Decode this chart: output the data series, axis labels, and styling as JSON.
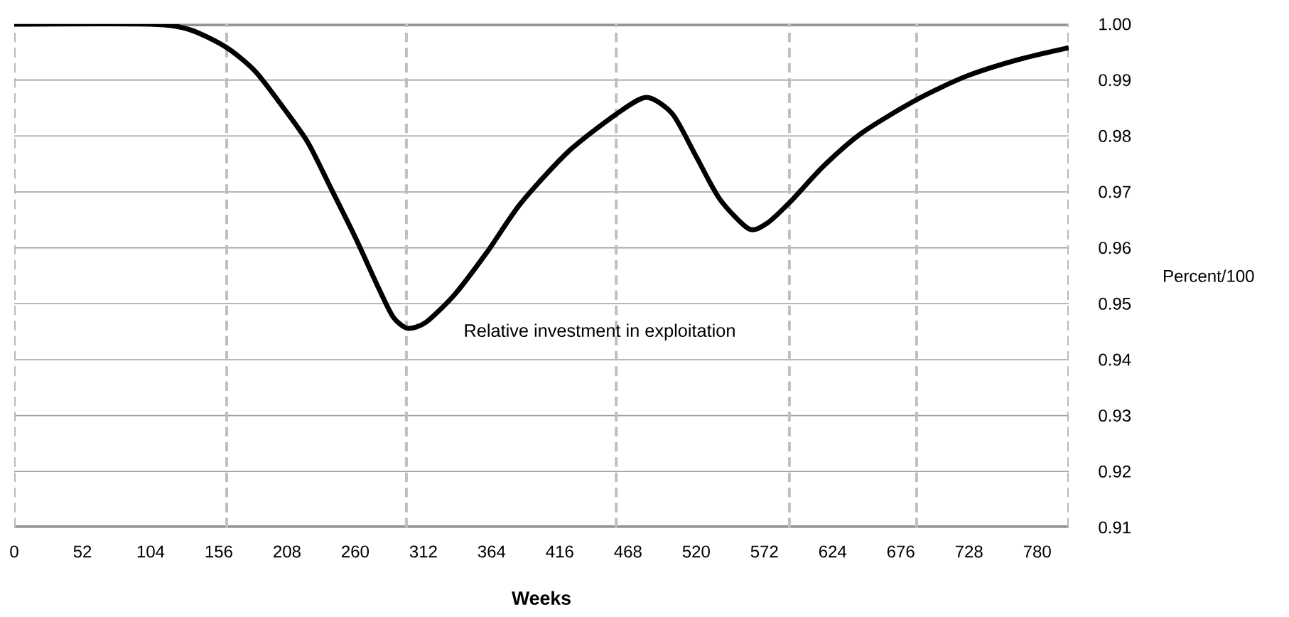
{
  "chart_data": {
    "type": "line",
    "xlabel": "Weeks",
    "ylabel": "Percent/100",
    "xlim": [
      0,
      804
    ],
    "ylim": [
      0.91,
      1.0
    ],
    "xticks": [
      0,
      52,
      104,
      156,
      208,
      260,
      312,
      364,
      416,
      468,
      520,
      572,
      624,
      676,
      728,
      780
    ],
    "yticks": [
      {
        "value": 0.91,
        "label": "0.91"
      },
      {
        "value": 0.92,
        "label": "0.92"
      },
      {
        "value": 0.93,
        "label": "0.93"
      },
      {
        "value": 0.94,
        "label": "0.94"
      },
      {
        "value": 0.95,
        "label": "0.95"
      },
      {
        "value": 0.96,
        "label": "0.96"
      },
      {
        "value": 0.97,
        "label": "0.97"
      },
      {
        "value": 0.98,
        "label": "0.98"
      },
      {
        "value": 0.99,
        "label": "0.99"
      },
      {
        "value": 1.0,
        "label": "1.00"
      }
    ],
    "grid": "y",
    "legend": false,
    "marker": "none",
    "line_style": "solid",
    "ref_lines": [
      {
        "axis": "x",
        "value": 162,
        "color": "#bfbfbf",
        "line_style": "dashed"
      },
      {
        "axis": "x",
        "value": 299,
        "color": "#bfbfbf",
        "line_style": "dashed"
      },
      {
        "axis": "x",
        "value": 459,
        "color": "#bfbfbf",
        "line_style": "dashed"
      },
      {
        "axis": "x",
        "value": 591,
        "color": "#bfbfbf",
        "line_style": "dashed"
      },
      {
        "axis": "x",
        "value": 688,
        "color": "#bfbfbf",
        "line_style": "dashed"
      }
    ],
    "series": [
      {
        "name": "Relative investment in exploitation",
        "color": "#000000",
        "x": [
          0,
          104,
          134,
          162,
          184,
          206,
          224,
          242,
          260,
          278,
          289,
          300,
          314,
          336,
          361,
          386,
          422,
          459,
          482,
          502,
          520,
          538,
          560,
          574,
          592,
          617,
          646,
          688,
          726,
          766,
          804
        ],
        "values": [
          1.0,
          1.0,
          0.999,
          0.9958,
          0.9915,
          0.9848,
          0.9788,
          0.9704,
          0.9619,
          0.9527,
          0.9476,
          0.9456,
          0.9467,
          0.9517,
          0.9594,
          0.9679,
          0.9771,
          0.9839,
          0.9869,
          0.9839,
          0.9763,
          0.9687,
          0.9634,
          0.9644,
          0.9683,
          0.9746,
          0.9805,
          0.9865,
          0.9907,
          0.9937,
          0.9958
        ]
      }
    ]
  }
}
